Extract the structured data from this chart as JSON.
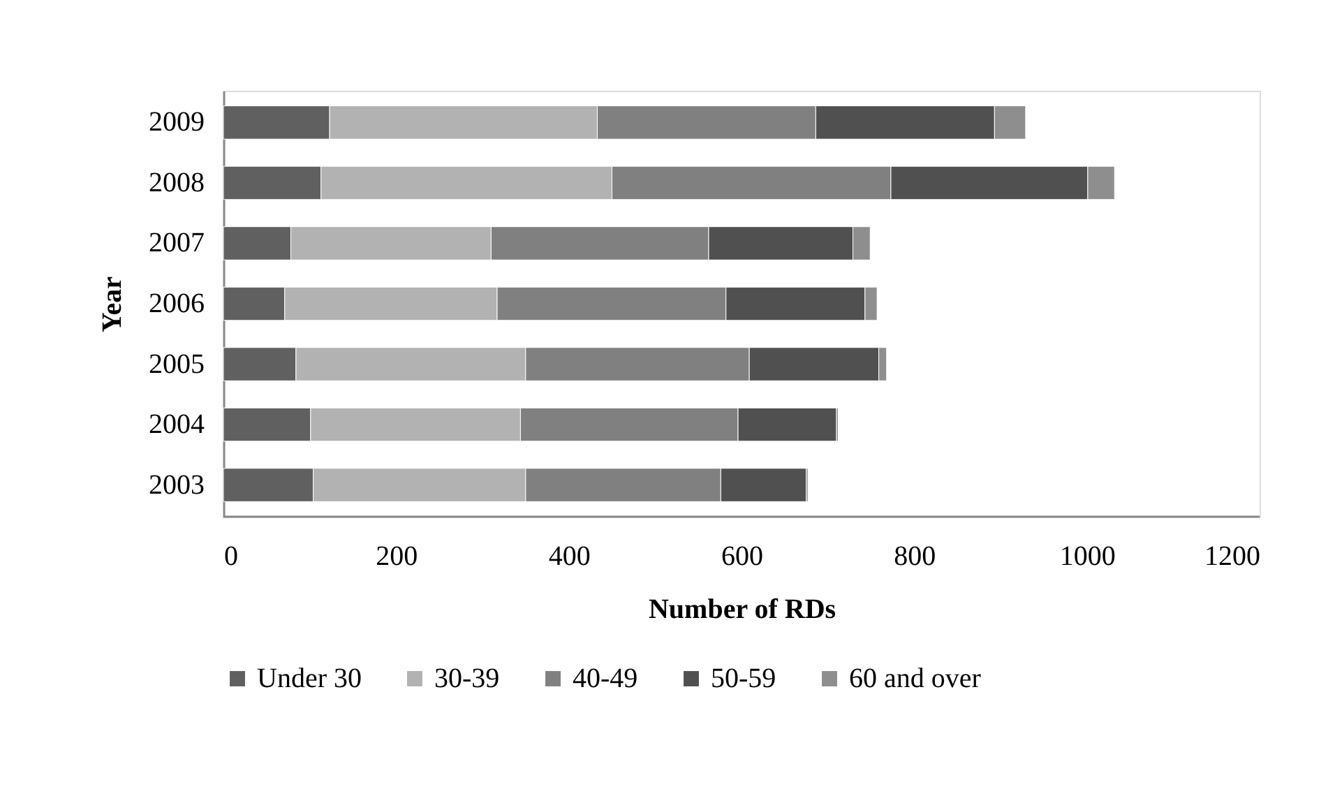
{
  "chart_data": {
    "type": "bar",
    "orientation": "horizontal",
    "stacked": true,
    "xlabel": "Number of RDs",
    "ylabel": "Year",
    "categories": [
      "2009",
      "2008",
      "2007",
      "2006",
      "2005",
      "2004",
      "2003"
    ],
    "series": [
      {
        "name": "Under 30",
        "color": "#606060",
        "values": [
          123,
          113,
          78,
          71,
          84,
          101,
          104
        ]
      },
      {
        "name": "30-39",
        "color": "#b2b2b2",
        "values": [
          310,
          337,
          232,
          246,
          266,
          243,
          246
        ]
      },
      {
        "name": "40-49",
        "color": "#808080",
        "values": [
          253,
          323,
          252,
          265,
          259,
          252,
          226
        ]
      },
      {
        "name": "50-59",
        "color": "#505050",
        "values": [
          207,
          228,
          167,
          161,
          150,
          114,
          99
        ]
      },
      {
        "name": "60 and over",
        "color": "#8e8e8e",
        "values": [
          36,
          31,
          20,
          14,
          9,
          2,
          2
        ]
      }
    ],
    "xlim": [
      0,
      1200
    ],
    "xticks": [
      0,
      200,
      400,
      600,
      800,
      1000,
      1200
    ],
    "grid": false,
    "legend": "bottom"
  }
}
